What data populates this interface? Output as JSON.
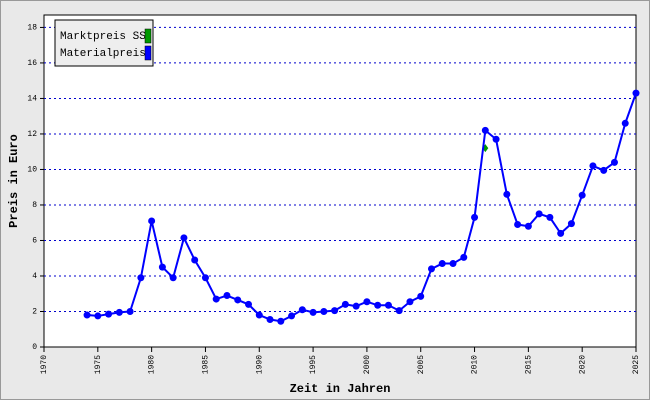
{
  "chart_data": {
    "type": "line",
    "xlabel": "Zeit in Jahren",
    "ylabel": "Preis in Euro",
    "x": [
      1974,
      1975,
      1976,
      1977,
      1978,
      1979,
      1980,
      1981,
      1982,
      1983,
      1984,
      1985,
      1986,
      1987,
      1988,
      1989,
      1990,
      1991,
      1992,
      1993,
      1994,
      1995,
      1996,
      1997,
      1998,
      1999,
      2000,
      2001,
      2002,
      2003,
      2004,
      2005,
      2006,
      2007,
      2008,
      2009,
      2010,
      2011,
      2012,
      2013,
      2014,
      2015,
      2016,
      2017,
      2018,
      2019,
      2020,
      2021,
      2022,
      2023,
      2024,
      2025
    ],
    "series": [
      {
        "name": "Marktpreis SS",
        "color": "#009900",
        "marker": "diamond",
        "values": [
          null,
          null,
          null,
          null,
          null,
          null,
          null,
          null,
          null,
          null,
          null,
          null,
          null,
          null,
          null,
          null,
          null,
          null,
          null,
          null,
          null,
          null,
          null,
          null,
          null,
          null,
          null,
          null,
          null,
          null,
          null,
          null,
          null,
          null,
          null,
          null,
          null,
          11.2,
          null,
          null,
          null,
          null,
          null,
          null,
          null,
          null,
          null,
          null,
          null,
          null,
          null,
          null
        ]
      },
      {
        "name": "Materialpreis",
        "color": "#0000ff",
        "marker": "circle",
        "values": [
          1.8,
          1.75,
          1.85,
          1.95,
          2.0,
          3.9,
          7.1,
          4.5,
          3.9,
          6.15,
          4.9,
          3.9,
          2.7,
          2.9,
          2.65,
          2.4,
          1.8,
          1.55,
          1.45,
          1.75,
          2.1,
          1.95,
          2.0,
          2.05,
          2.4,
          2.3,
          2.55,
          2.35,
          2.35,
          2.05,
          2.55,
          2.85,
          4.4,
          4.7,
          4.7,
          5.05,
          7.3,
          12.2,
          11.7,
          8.6,
          6.9,
          6.8,
          7.5,
          7.3,
          6.4,
          6.95,
          8.55,
          10.2,
          9.95,
          10.4,
          12.6,
          14.3
        ]
      }
    ],
    "xlim": [
      1970,
      2025
    ],
    "xticks": [
      1970,
      1975,
      1980,
      1985,
      1990,
      1995,
      2000,
      2005,
      2010,
      2015,
      2020,
      2025
    ],
    "ylim": [
      0,
      18.7
    ],
    "yticks": [
      0,
      2,
      4,
      6,
      8,
      10,
      12,
      14,
      16,
      18
    ],
    "grid": true,
    "legend": "upper left"
  }
}
